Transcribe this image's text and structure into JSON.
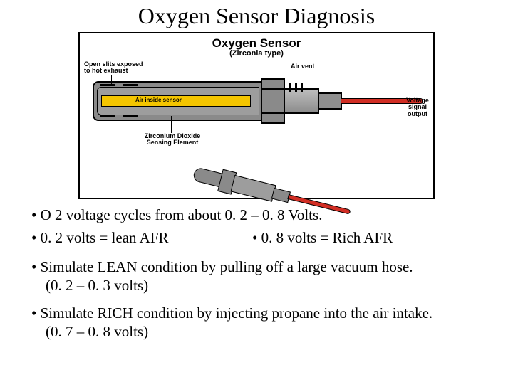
{
  "title": "Oxygen Sensor Diagnosis",
  "diagram": {
    "title": "Oxygen Sensor",
    "subtitle": "(Zirconia type)",
    "air_label": "Air inside sensor",
    "callouts": {
      "slits": "Open slits exposed\nto hot exhaust",
      "air_vent": "Air vent",
      "voltage": "Voltage\nsignal\noutput",
      "zirconium": "Zirconium Dioxide\nSensing Element"
    },
    "colors": {
      "shell": "#8a8a8a",
      "shell_inner": "#9d9d9d",
      "air_strip": "#f4c500",
      "wire": "#d12e24",
      "border": "#000000",
      "background": "#ffffff"
    }
  },
  "bullets": {
    "b1": "• O 2 voltage cycles from about 0. 2 – 0. 8 Volts.",
    "b2a": "• 0. 2 volts = lean AFR",
    "b2b": "• 0. 8 volts = Rich AFR",
    "b3_line1": "• Simulate LEAN condition by pulling off a large vacuum hose.",
    "b3_line2": "(0. 2 – 0. 3 volts)",
    "b4_line1": "• Simulate RICH condition by injecting propane into the air intake.",
    "b4_line2": "(0. 7 – 0. 8 volts)"
  }
}
